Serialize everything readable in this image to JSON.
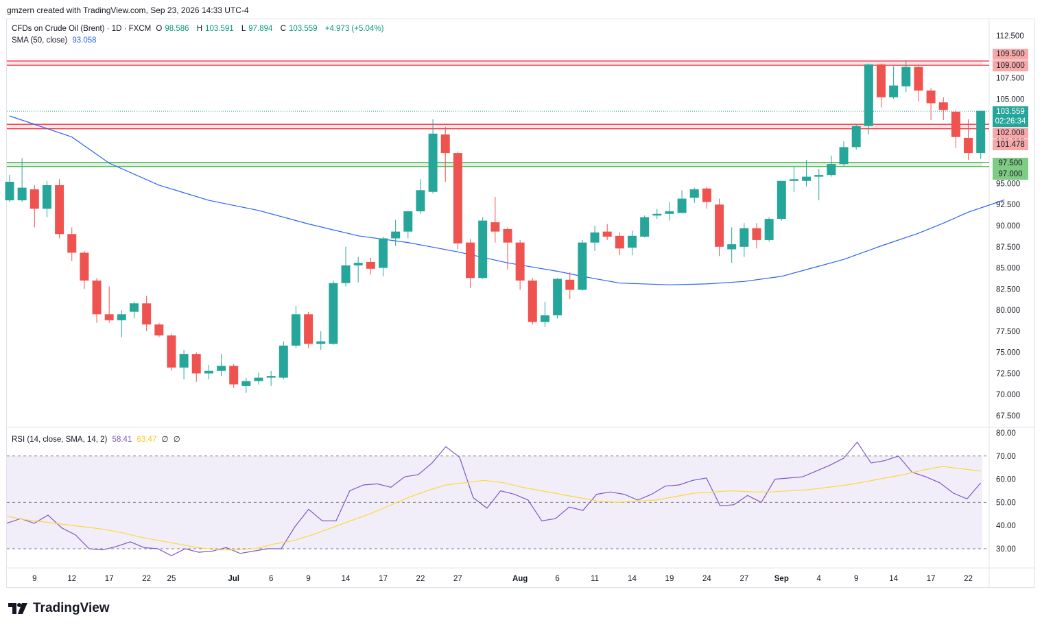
{
  "header": {
    "attribution": "gmzern created with TradingView.com, Sep 23, 2026 14:33 UTC-4"
  },
  "legend": {
    "symbol": "CFDs on Crude Oil (Brent) · 1D · FXCM",
    "open_label": "O",
    "open": "98.586",
    "high_label": "H",
    "high": "103.591",
    "low_label": "L",
    "low": "97.894",
    "close_label": "C",
    "close": "103.559",
    "change": "+4.973 (+5.04%)",
    "sma_label": "SMA (50, close)",
    "sma_value": "93.058",
    "rsi_label": "RSI (14, close, SMA, 14, 2)",
    "rsi_value": "58.41",
    "rsi_sma_value": "63.47",
    "rsi_extra1": "∅",
    "rsi_extra2": "∅"
  },
  "price_tags": {
    "r1_top": "109.500",
    "r1_bottom": "109.000",
    "last_price": "103.559",
    "countdown": "02:26:34",
    "r2_top": "102.008",
    "r2_bottom": "101.478",
    "s1_top": "97.500",
    "s1_bottom": "97.000"
  },
  "footer": {
    "brand": "TradingView"
  },
  "colors": {
    "up": "#26a69a",
    "down": "#ef5350",
    "sma": "#2962ff",
    "rsi": "#7e57c2",
    "rsi_sma": "#fdd835",
    "resistance": "#f23645",
    "support": "#4caf50"
  },
  "chart_data": [
    {
      "type": "candlestick",
      "title": "CFDs on Crude Oil (Brent) · 1D · FXCM",
      "ylim": [
        66,
        114
      ],
      "y_ticks": [
        "67.500",
        "70.000",
        "72.500",
        "75.000",
        "77.500",
        "80.000",
        "82.500",
        "85.000",
        "87.500",
        "90.000",
        "92.500",
        "95.000",
        "97.500",
        "100.000",
        "102.500",
        "105.000",
        "107.500",
        "110.000",
        "112.500"
      ],
      "x_tick_labels": [
        "9",
        "12",
        "17",
        "22",
        "25",
        "Jul",
        "6",
        "9",
        "14",
        "17",
        "22",
        "27",
        "Aug",
        "6",
        "11",
        "14",
        "19",
        "24",
        "27",
        "Sep",
        "4",
        "9",
        "14",
        "17",
        "22"
      ],
      "candles": [
        {
          "o": 93.0,
          "h": 96.0,
          "l": 92.8,
          "c": 95.2
        },
        {
          "o": 93.0,
          "h": 98.0,
          "l": 92.8,
          "c": 94.5
        },
        {
          "o": 94.3,
          "h": 94.8,
          "l": 89.8,
          "c": 92.0
        },
        {
          "o": 92.0,
          "h": 95.3,
          "l": 91.0,
          "c": 94.8
        },
        {
          "o": 94.8,
          "h": 95.5,
          "l": 88.5,
          "c": 89.0
        },
        {
          "o": 89.0,
          "h": 89.8,
          "l": 85.8,
          "c": 86.8
        },
        {
          "o": 86.8,
          "h": 87.0,
          "l": 82.5,
          "c": 83.5
        },
        {
          "o": 83.5,
          "h": 83.8,
          "l": 78.5,
          "c": 79.5
        },
        {
          "o": 79.5,
          "h": 82.8,
          "l": 78.5,
          "c": 78.8
        },
        {
          "o": 78.8,
          "h": 80.0,
          "l": 76.8,
          "c": 79.5
        },
        {
          "o": 79.8,
          "h": 81.0,
          "l": 79.0,
          "c": 80.8
        },
        {
          "o": 80.8,
          "h": 81.7,
          "l": 77.5,
          "c": 78.3
        },
        {
          "o": 78.3,
          "h": 78.5,
          "l": 76.8,
          "c": 77.0
        },
        {
          "o": 77.0,
          "h": 77.2,
          "l": 72.8,
          "c": 73.2
        },
        {
          "o": 73.2,
          "h": 75.3,
          "l": 71.8,
          "c": 74.8
        },
        {
          "o": 74.8,
          "h": 75.0,
          "l": 71.5,
          "c": 72.5
        },
        {
          "o": 72.5,
          "h": 73.5,
          "l": 71.8,
          "c": 72.8
        },
        {
          "o": 72.8,
          "h": 74.8,
          "l": 72.2,
          "c": 73.4
        },
        {
          "o": 73.4,
          "h": 73.6,
          "l": 70.8,
          "c": 71.2
        },
        {
          "o": 71.0,
          "h": 72.0,
          "l": 70.2,
          "c": 71.6
        },
        {
          "o": 71.6,
          "h": 72.6,
          "l": 71.2,
          "c": 72.0
        },
        {
          "o": 72.0,
          "h": 72.8,
          "l": 71.0,
          "c": 72.2
        },
        {
          "o": 72.0,
          "h": 76.3,
          "l": 71.8,
          "c": 75.8
        },
        {
          "o": 75.8,
          "h": 80.5,
          "l": 75.5,
          "c": 79.5
        },
        {
          "o": 79.5,
          "h": 79.8,
          "l": 75.5,
          "c": 76.0
        },
        {
          "o": 76.0,
          "h": 77.5,
          "l": 75.3,
          "c": 76.3
        },
        {
          "o": 76.0,
          "h": 83.5,
          "l": 75.9,
          "c": 83.2
        },
        {
          "o": 83.2,
          "h": 87.5,
          "l": 82.8,
          "c": 85.3
        },
        {
          "o": 85.3,
          "h": 86.3,
          "l": 83.3,
          "c": 85.6
        },
        {
          "o": 85.7,
          "h": 86.2,
          "l": 84.2,
          "c": 84.9
        },
        {
          "o": 85.0,
          "h": 88.7,
          "l": 84.0,
          "c": 88.5
        },
        {
          "o": 88.5,
          "h": 90.7,
          "l": 87.6,
          "c": 89.3
        },
        {
          "o": 89.3,
          "h": 91.8,
          "l": 88.5,
          "c": 91.7
        },
        {
          "o": 91.7,
          "h": 95.5,
          "l": 91.4,
          "c": 94.2
        },
        {
          "o": 94.0,
          "h": 102.6,
          "l": 93.8,
          "c": 100.9
        },
        {
          "o": 100.8,
          "h": 101.7,
          "l": 95.2,
          "c": 98.6
        },
        {
          "o": 98.6,
          "h": 98.8,
          "l": 87.2,
          "c": 87.9
        },
        {
          "o": 88.0,
          "h": 88.4,
          "l": 82.6,
          "c": 83.8
        },
        {
          "o": 83.8,
          "h": 91.0,
          "l": 83.7,
          "c": 90.6
        },
        {
          "o": 90.4,
          "h": 93.4,
          "l": 88.0,
          "c": 89.3
        },
        {
          "o": 89.6,
          "h": 89.8,
          "l": 84.8,
          "c": 88.0
        },
        {
          "o": 88.0,
          "h": 88.3,
          "l": 82.4,
          "c": 83.5
        },
        {
          "o": 83.5,
          "h": 83.8,
          "l": 78.3,
          "c": 78.6
        },
        {
          "o": 78.6,
          "h": 81.0,
          "l": 78.0,
          "c": 79.4
        },
        {
          "o": 79.4,
          "h": 83.8,
          "l": 79.0,
          "c": 83.7
        },
        {
          "o": 83.6,
          "h": 84.5,
          "l": 81.3,
          "c": 82.4
        },
        {
          "o": 82.4,
          "h": 88.3,
          "l": 82.3,
          "c": 88.0
        },
        {
          "o": 88.0,
          "h": 90.0,
          "l": 87.0,
          "c": 89.2
        },
        {
          "o": 89.3,
          "h": 90.2,
          "l": 88.3,
          "c": 88.7
        },
        {
          "o": 88.8,
          "h": 89.2,
          "l": 86.5,
          "c": 87.3
        },
        {
          "o": 87.4,
          "h": 89.4,
          "l": 86.5,
          "c": 88.8
        },
        {
          "o": 88.7,
          "h": 91.2,
          "l": 88.6,
          "c": 91.0
        },
        {
          "o": 91.2,
          "h": 92.0,
          "l": 90.8,
          "c": 91.4
        },
        {
          "o": 91.4,
          "h": 92.8,
          "l": 90.6,
          "c": 91.7
        },
        {
          "o": 91.5,
          "h": 94.2,
          "l": 91.5,
          "c": 93.2
        },
        {
          "o": 93.3,
          "h": 94.5,
          "l": 92.7,
          "c": 94.3
        },
        {
          "o": 94.4,
          "h": 94.6,
          "l": 92.0,
          "c": 92.8
        },
        {
          "o": 92.5,
          "h": 93.2,
          "l": 86.4,
          "c": 87.5
        },
        {
          "o": 87.2,
          "h": 89.8,
          "l": 85.6,
          "c": 87.8
        },
        {
          "o": 87.5,
          "h": 90.3,
          "l": 86.3,
          "c": 89.7
        },
        {
          "o": 89.7,
          "h": 90.3,
          "l": 87.3,
          "c": 88.3
        },
        {
          "o": 88.3,
          "h": 91.0,
          "l": 88.1,
          "c": 90.8
        },
        {
          "o": 90.8,
          "h": 95.3,
          "l": 90.6,
          "c": 95.3
        },
        {
          "o": 95.3,
          "h": 97.0,
          "l": 94.0,
          "c": 95.5
        },
        {
          "o": 95.3,
          "h": 97.8,
          "l": 94.6,
          "c": 95.8
        },
        {
          "o": 95.8,
          "h": 96.7,
          "l": 93.0,
          "c": 96.0
        },
        {
          "o": 96.0,
          "h": 98.3,
          "l": 95.8,
          "c": 97.3
        },
        {
          "o": 97.3,
          "h": 100.0,
          "l": 97.0,
          "c": 99.3
        },
        {
          "o": 99.3,
          "h": 102.0,
          "l": 99.0,
          "c": 101.8
        },
        {
          "o": 101.8,
          "h": 109.2,
          "l": 100.8,
          "c": 109.1
        },
        {
          "o": 109.1,
          "h": 109.2,
          "l": 104.0,
          "c": 105.2
        },
        {
          "o": 105.2,
          "h": 108.9,
          "l": 105.0,
          "c": 106.6
        },
        {
          "o": 106.5,
          "h": 109.6,
          "l": 105.8,
          "c": 108.8
        },
        {
          "o": 108.8,
          "h": 109.1,
          "l": 104.7,
          "c": 106.0
        },
        {
          "o": 106.0,
          "h": 106.3,
          "l": 102.5,
          "c": 104.5
        },
        {
          "o": 104.6,
          "h": 105.2,
          "l": 102.5,
          "c": 103.7
        },
        {
          "o": 103.5,
          "h": 103.7,
          "l": 99.2,
          "c": 100.5
        },
        {
          "o": 100.4,
          "h": 102.6,
          "l": 97.8,
          "c": 98.6
        },
        {
          "o": 98.6,
          "h": 103.6,
          "l": 97.9,
          "c": 103.6
        }
      ],
      "sma_50": [
        103.0,
        100.5,
        97.4,
        94.8,
        93.0,
        91.8,
        90.2,
        88.8,
        88.0,
        86.9,
        85.6,
        84.6,
        84.0,
        83.2,
        83.0,
        83.1,
        83.4,
        84.0,
        84.8,
        86.0,
        87.6,
        89.1,
        90.3,
        91.6,
        92.6,
        93.06
      ],
      "sma_50_x_index": [
        0,
        5,
        8,
        12,
        16,
        20,
        24,
        28,
        32,
        36,
        40,
        44,
        46,
        49,
        53,
        56,
        59,
        62,
        64,
        67,
        70,
        73,
        75,
        77,
        79,
        79.9
      ],
      "horizontal_levels": [
        {
          "kind": "resistance",
          "top": 109.5,
          "bottom": 109.0
        },
        {
          "kind": "resistance",
          "top": 102.008,
          "bottom": 101.478
        },
        {
          "kind": "support",
          "top": 97.5,
          "bottom": 97.0
        }
      ],
      "last_price": 103.559
    },
    {
      "type": "line",
      "title": "RSI (14, close, SMA, 14, 2)",
      "ylim": [
        26,
        82
      ],
      "y_ticks": [
        "30.00",
        "40.00",
        "50.00",
        "60.00",
        "70.00",
        "80.00"
      ],
      "bands": {
        "upper": 70,
        "middle": 50,
        "lower": 30
      },
      "series": [
        {
          "name": "RSI",
          "values": [
            41,
            43,
            41,
            44.5,
            39,
            36,
            30,
            29.5,
            31,
            33,
            30.5,
            30,
            27,
            30,
            28.5,
            29,
            30.5,
            28,
            29,
            30,
            30,
            39.5,
            47,
            42,
            42,
            55,
            57.5,
            58,
            56.5,
            61,
            62,
            67,
            74,
            69.5,
            52,
            47.5,
            55,
            53.5,
            51,
            42,
            43,
            48,
            46.5,
            53.5,
            54.5,
            53.5,
            51,
            53.5,
            57,
            57.5,
            59.5,
            60.5,
            48.5,
            49,
            53,
            50,
            60,
            60.5,
            61,
            63.5,
            66,
            69,
            76,
            67,
            68,
            70,
            63,
            61,
            58.5,
            54,
            51.5,
            58.4
          ]
        },
        {
          "name": "RSI SMA",
          "values": [
            44,
            42.5,
            41.5,
            40.5,
            39.5,
            38.5,
            37,
            35,
            33.5,
            32,
            30.5,
            29.5,
            29.5,
            30,
            32,
            33.5,
            36,
            39,
            42,
            45,
            48.5,
            52,
            55,
            57.5,
            58.5,
            59.5,
            58.5,
            56.5,
            55,
            53.5,
            52,
            50.5,
            50,
            50.5,
            51,
            52.5,
            54,
            54.5,
            55,
            54.5,
            54.5,
            55,
            55.5,
            56.5,
            57.5,
            59,
            60.5,
            62,
            64,
            65.5,
            64.5,
            63.47
          ]
        }
      ]
    }
  ]
}
